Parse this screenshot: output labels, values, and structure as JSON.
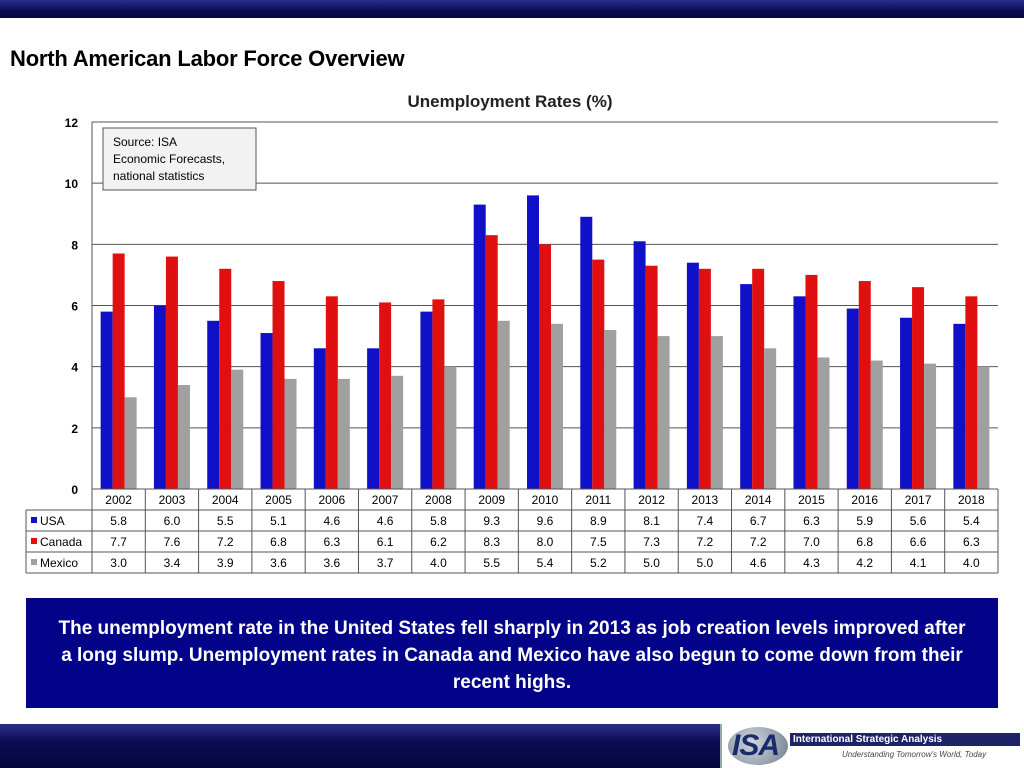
{
  "page_title": "North American Labor Force Overview",
  "summary_text": "The unemployment rate in the United States fell sharply in 2013 as job creation levels improved after a long slump.  Unemployment rates in Canada and Mexico have also begun to come down from their recent highs.",
  "logo": {
    "text": "ISA",
    "name": "International Strategic Analysis",
    "tagline": "Understanding Tomorrow's World, Today"
  },
  "colors": {
    "usa": "#1010c8",
    "canada": "#e01010",
    "mexico": "#a0a0a0",
    "header_bar": "#0b0c55",
    "summary_bg": "#03038a"
  },
  "chart_data": {
    "type": "bar",
    "title": "Unemployment Rates (%)",
    "annotation": "Source: ISA\nEconomic Forecasts,\nnational statistics",
    "categories": [
      "2002",
      "2003",
      "2004",
      "2005",
      "2006",
      "2007",
      "2008",
      "2009",
      "2010",
      "2011",
      "2012",
      "2013",
      "2014",
      "2015",
      "2016",
      "2017",
      "2018"
    ],
    "series": [
      {
        "name": "USA",
        "color": "#1010c8",
        "values": [
          5.8,
          6.0,
          5.5,
          5.1,
          4.6,
          4.6,
          5.8,
          9.3,
          9.6,
          8.9,
          8.1,
          7.4,
          6.7,
          6.3,
          5.9,
          5.6,
          5.4
        ]
      },
      {
        "name": "Canada",
        "color": "#e01010",
        "values": [
          7.7,
          7.6,
          7.2,
          6.8,
          6.3,
          6.1,
          6.2,
          8.3,
          8.0,
          7.5,
          7.3,
          7.2,
          7.2,
          7.0,
          6.8,
          6.6,
          6.3
        ]
      },
      {
        "name": "Mexico",
        "color": "#a0a0a0",
        "values": [
          3.0,
          3.4,
          3.9,
          3.6,
          3.6,
          3.7,
          4.0,
          5.5,
          5.4,
          5.2,
          5.0,
          5.0,
          4.6,
          4.3,
          4.2,
          4.1,
          4.0
        ]
      }
    ],
    "table_values": [
      [
        "5.8",
        "6.0",
        "5.5",
        "5.1",
        "4.6",
        "4.6",
        "5.8",
        "9.3",
        "9.6",
        "8.9",
        "8.1",
        "7.4",
        "6.7",
        "6.3",
        "5.9",
        "5.6",
        "5.4"
      ],
      [
        "7.7",
        "7.6",
        "7.2",
        "6.8",
        "6.3",
        "6.1",
        "6.2",
        "8.3",
        "8.0",
        "7.5",
        "7.3",
        "7.2",
        "7.2",
        "7.0",
        "6.8",
        "6.6",
        "6.3"
      ],
      [
        "3.0",
        "3.4",
        "3.9",
        "3.6",
        "3.6",
        "3.7",
        "4.0",
        "5.5",
        "5.4",
        "5.2",
        "5.0",
        "5.0",
        "4.6",
        "4.3",
        "4.2",
        "4.1",
        "4.0"
      ]
    ],
    "ylim": [
      0,
      12
    ],
    "yticks": [
      "0",
      "2",
      "4",
      "6",
      "8",
      "10",
      "12"
    ],
    "grid": true,
    "legend": "data table"
  }
}
